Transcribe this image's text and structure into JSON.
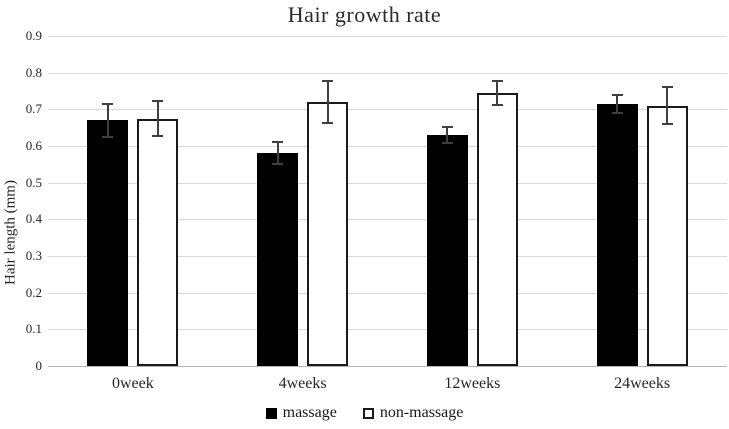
{
  "chart_data": {
    "type": "bar",
    "title": "Hair growth rate",
    "xlabel": "",
    "ylabel": "Hair length (mm)",
    "categories": [
      "0week",
      "4weeks",
      "12weeks",
      "24weeks"
    ],
    "series": [
      {
        "name": "massage",
        "fill": "#000000",
        "border": "#000000",
        "values": [
          0.67,
          0.58,
          0.63,
          0.715
        ],
        "errors": [
          0.045,
          0.03,
          0.022,
          0.025
        ]
      },
      {
        "name": "non-massage",
        "fill": "#ffffff",
        "border": "#1a1a1a",
        "values": [
          0.675,
          0.72,
          0.745,
          0.71
        ],
        "errors": [
          0.047,
          0.057,
          0.033,
          0.05
        ]
      }
    ],
    "ylim": [
      0,
      0.9
    ],
    "ytick_step": 0.1,
    "yticks": [
      "0",
      "0.1",
      "0.2",
      "0.3",
      "0.4",
      "0.5",
      "0.6",
      "0.7",
      "0.8",
      "0.9"
    ],
    "grid": true,
    "legend_position": "bottom",
    "colors": {
      "gridline": "#d9d9d9",
      "axis": "#b3b3b3",
      "error_bar": "#3f3f3f",
      "text": "#262626"
    }
  }
}
